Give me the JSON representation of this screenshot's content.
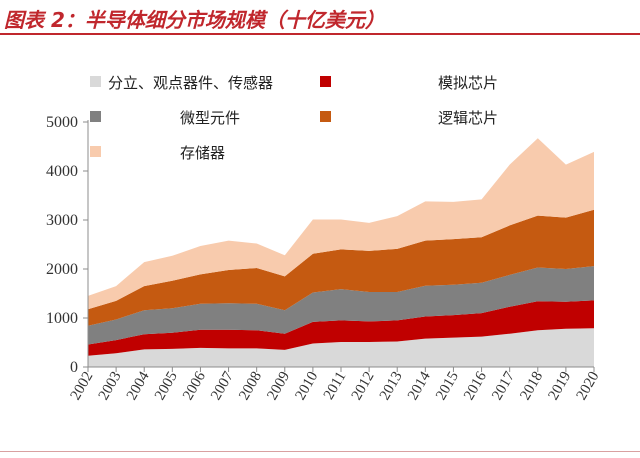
{
  "header": {
    "title": "图表 2：半导体细分市场规模（十亿美元）",
    "accent_color": "#c0272d"
  },
  "chart_data": {
    "type": "area",
    "stacked": true,
    "x": [
      "2002",
      "2003",
      "2004",
      "2005",
      "2006",
      "2007",
      "2008",
      "2009",
      "2010",
      "2011",
      "2012",
      "2013",
      "2014",
      "2015",
      "2016",
      "2017",
      "2018",
      "2019",
      "2020"
    ],
    "ylim": [
      0,
      5000
    ],
    "yticks": [
      0,
      1000,
      2000,
      3000,
      4000,
      5000
    ],
    "grid": false,
    "legend_position": "top-left",
    "series": [
      {
        "name": "分立、观点器件、传感器",
        "color": "#d9d9d9",
        "values": [
          230,
          280,
          360,
          370,
          390,
          380,
          380,
          350,
          480,
          510,
          510,
          520,
          580,
          600,
          620,
          680,
          750,
          780,
          790
        ]
      },
      {
        "name": "模拟芯片",
        "color": "#c00000",
        "values": [
          230,
          270,
          310,
          330,
          370,
          380,
          370,
          330,
          440,
          440,
          420,
          430,
          450,
          460,
          480,
          550,
          590,
          550,
          570
        ]
      },
      {
        "name": "微型元件",
        "color": "#808080",
        "values": [
          380,
          420,
          490,
          500,
          530,
          540,
          540,
          480,
          600,
          640,
          600,
          580,
          630,
          620,
          620,
          650,
          690,
          670,
          700
        ]
      },
      {
        "name": "逻辑芯片",
        "color": "#c55a11",
        "values": [
          340,
          380,
          490,
          560,
          600,
          680,
          730,
          690,
          790,
          810,
          840,
          880,
          920,
          930,
          930,
          1010,
          1060,
          1050,
          1150
        ]
      },
      {
        "name": "存储器",
        "color": "#f8cbad",
        "values": [
          270,
          300,
          490,
          510,
          580,
          600,
          500,
          430,
          700,
          610,
          570,
          670,
          800,
          760,
          770,
          1240,
          1580,
          1080,
          1180
        ]
      }
    ]
  }
}
